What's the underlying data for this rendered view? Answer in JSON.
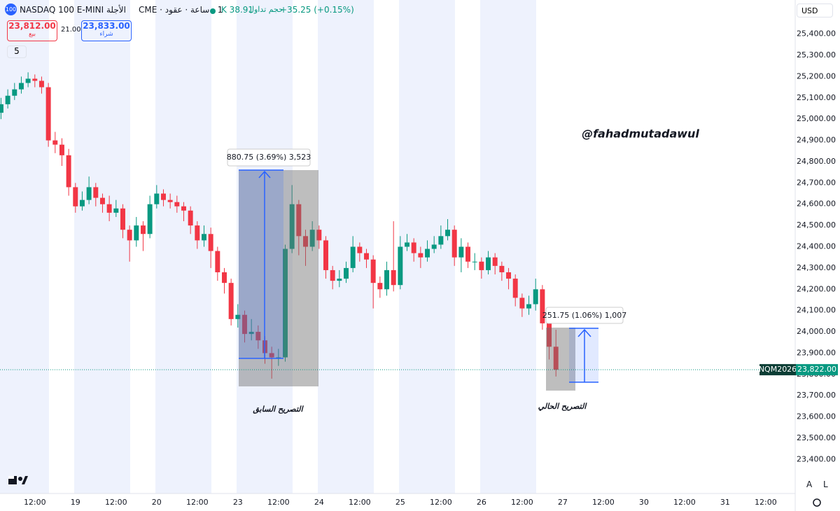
{
  "ui": {
    "logo": "100",
    "title": "الأجلة NASDAQ 100 E-MINI",
    "interval": "1 · ساعة · عقود · CME",
    "volume_label": "حجم تداول",
    "volume": "K 38.91",
    "change": "+35.25 (+0.15%)",
    "sell_price": "23,812.00",
    "sell_label": "بيع",
    "spread": "21.00",
    "buy_price": "23,833.00",
    "buy_label": "شراء",
    "indicators": "5",
    "currency": "USD",
    "watermark": "@fahadmutadawul",
    "measure1": "880.75 (3.69%) 3,523",
    "measure2": "251.75 (1.06%) 1,007",
    "note1": "التصريح السابق",
    "note2": "التصريح الحالي",
    "symbol": "NQM2026",
    "btn_a": "A",
    "btn_l": "L"
  },
  "chart_data": {
    "type": "candlestick",
    "up_color": "#089981",
    "down_color": "#f23645",
    "grid": false,
    "last_price": {
      "value": 23822,
      "label": "23,822.00"
    },
    "xlim": [
      1.7,
      236.5
    ],
    "ylim": [
      23240,
      25560
    ],
    "xticks": [
      {
        "value": 12,
        "label": "12:00"
      },
      {
        "value": 24,
        "label": "19"
      },
      {
        "value": 36,
        "label": "12:00"
      },
      {
        "value": 48,
        "label": "20"
      },
      {
        "value": 60,
        "label": "12:00"
      },
      {
        "value": 72,
        "label": "23"
      },
      {
        "value": 84,
        "label": "12:00"
      },
      {
        "value": 96,
        "label": "24"
      },
      {
        "value": 108,
        "label": "12:00"
      },
      {
        "value": 120,
        "label": "25"
      },
      {
        "value": 132,
        "label": "12:00"
      },
      {
        "value": 144,
        "label": "26"
      },
      {
        "value": 156,
        "label": "12:00"
      },
      {
        "value": 168,
        "label": "27"
      },
      {
        "value": 180,
        "label": "12:00"
      },
      {
        "value": 192,
        "label": "30"
      },
      {
        "value": 204,
        "label": "12:00"
      },
      {
        "value": 216,
        "label": "31"
      },
      {
        "value": 228,
        "label": "12:00"
      }
    ],
    "yticks": [
      {
        "value": 23400,
        "label": "23,400.00"
      },
      {
        "value": 23500,
        "label": "23,500.00"
      },
      {
        "value": 23600,
        "label": "23,600.00"
      },
      {
        "value": 23700,
        "label": "23,700.00"
      },
      {
        "value": 23800,
        "label": "23,800.00"
      },
      {
        "value": 23900,
        "label": "23,900.00"
      },
      {
        "value": 24000,
        "label": "24,000.00"
      },
      {
        "value": 24100,
        "label": "24,100.00"
      },
      {
        "value": 24200,
        "label": "24,200.00"
      },
      {
        "value": 24300,
        "label": "24,300.00"
      },
      {
        "value": 24400,
        "label": "24,400.00"
      },
      {
        "value": 24500,
        "label": "24,500.00"
      },
      {
        "value": 24600,
        "label": "24,600.00"
      },
      {
        "value": 24700,
        "label": "24,700.00"
      },
      {
        "value": 24800,
        "label": "24,800.00"
      },
      {
        "value": 24900,
        "label": "24,900.00"
      },
      {
        "value": 25000,
        "label": "25,000.00"
      },
      {
        "value": 25100,
        "label": "25,100.00"
      },
      {
        "value": 25200,
        "label": "25,200.00"
      },
      {
        "value": 25300,
        "label": "25,300.00"
      },
      {
        "value": 25400,
        "label": "25,400.00"
      }
    ],
    "x": [
      2,
      4,
      6,
      8,
      10,
      12,
      14,
      16,
      18,
      20,
      22,
      24,
      26,
      28,
      30,
      32,
      34,
      36,
      38,
      40,
      42,
      44,
      46,
      48,
      50,
      52,
      54,
      56,
      58,
      60,
      62,
      64,
      66,
      68,
      70,
      72,
      74,
      76,
      78,
      80,
      82,
      84,
      86,
      88,
      90,
      92,
      94,
      96,
      98,
      100,
      102,
      104,
      106,
      108,
      110,
      112,
      114,
      116,
      118,
      120,
      122,
      124,
      126,
      128,
      130,
      132,
      134,
      136,
      138,
      140,
      142,
      144,
      146,
      148,
      150,
      152,
      154,
      156,
      158,
      160,
      162,
      164,
      166
    ],
    "open": [
      25030,
      25070,
      25110,
      25140,
      25170,
      25190,
      25180,
      25150,
      24900,
      24880,
      24830,
      24680,
      24590,
      24620,
      24680,
      24630,
      24600,
      24560,
      24580,
      24480,
      24430,
      24500,
      24460,
      24600,
      24650,
      24620,
      24610,
      24590,
      24570,
      24500,
      24430,
      24460,
      24380,
      24280,
      24230,
      24060,
      24080,
      23990,
      24000,
      23960,
      23900,
      23880,
      23880,
      24390,
      24600,
      24450,
      24400,
      24480,
      24430,
      24290,
      24240,
      24250,
      24300,
      24400,
      24370,
      24340,
      24230,
      24200,
      24290,
      24220,
      24400,
      24420,
      24370,
      24350,
      24390,
      24410,
      24450,
      24480,
      24350,
      24400,
      24330,
      24330,
      24290,
      24350,
      24310,
      24280,
      24250,
      24160,
      24110,
      24130,
      24200,
      24040,
      23930
    ],
    "high": [
      25100,
      25140,
      25170,
      25200,
      25220,
      25210,
      25200,
      25170,
      24940,
      24910,
      24860,
      24700,
      24660,
      24730,
      24700,
      24650,
      24640,
      24620,
      24600,
      24500,
      24540,
      24520,
      24640,
      24690,
      24670,
      24650,
      24640,
      24610,
      24590,
      24520,
      24500,
      24490,
      24400,
      24300,
      24250,
      24130,
      24100,
      24060,
      24030,
      23980,
      23930,
      23920,
      24410,
      24690,
      24620,
      24480,
      24520,
      24500,
      24450,
      24310,
      24290,
      24330,
      24450,
      24420,
      24390,
      24360,
      24260,
      24330,
      24520,
      24450,
      24460,
      24440,
      24400,
      24430,
      24450,
      24500,
      24530,
      24500,
      24440,
      24420,
      24370,
      24350,
      24380,
      24370,
      24330,
      24300,
      24270,
      24180,
      24170,
      24250,
      24220,
      24060,
      24010
    ],
    "low": [
      25000,
      25050,
      25090,
      25120,
      25150,
      25150,
      25120,
      24870,
      24840,
      24780,
      24640,
      24560,
      24570,
      24600,
      24590,
      24560,
      24520,
      24540,
      24440,
      24330,
      24400,
      24380,
      24440,
      24580,
      24590,
      24580,
      24560,
      24520,
      24460,
      24390,
      24400,
      24300,
      24240,
      24180,
      24030,
      24020,
      23950,
      23960,
      23920,
      23850,
      23780,
      23840,
      23860,
      24370,
      24360,
      24310,
      24380,
      24390,
      24250,
      24200,
      24210,
      24230,
      24280,
      24330,
      24300,
      24110,
      24160,
      24170,
      24190,
      24200,
      24380,
      24330,
      24300,
      24330,
      24370,
      24390,
      24430,
      24310,
      24280,
      24300,
      24290,
      24250,
      24270,
      24270,
      24240,
      24200,
      24120,
      24070,
      24080,
      24100,
      24010,
      23870,
      23790
    ],
    "close": [
      25070,
      25110,
      25140,
      25170,
      25190,
      25180,
      25150,
      24900,
      24880,
      24830,
      24680,
      24590,
      24620,
      24680,
      24630,
      24600,
      24560,
      24580,
      24480,
      24430,
      24500,
      24460,
      24600,
      24650,
      24620,
      24610,
      24590,
      24570,
      24500,
      24430,
      24460,
      24380,
      24280,
      24230,
      24060,
      24080,
      23990,
      24000,
      23960,
      23900,
      23880,
      23880,
      24390,
      24600,
      24450,
      24400,
      24480,
      24430,
      24290,
      24240,
      24250,
      24300,
      24400,
      24370,
      24340,
      24230,
      24200,
      24290,
      24220,
      24400,
      24420,
      24370,
      24350,
      24390,
      24410,
      24450,
      24480,
      24350,
      24400,
      24330,
      24330,
      24290,
      24350,
      24310,
      24280,
      24250,
      24160,
      24110,
      24130,
      24200,
      24040,
      23930,
      23822
    ]
  }
}
